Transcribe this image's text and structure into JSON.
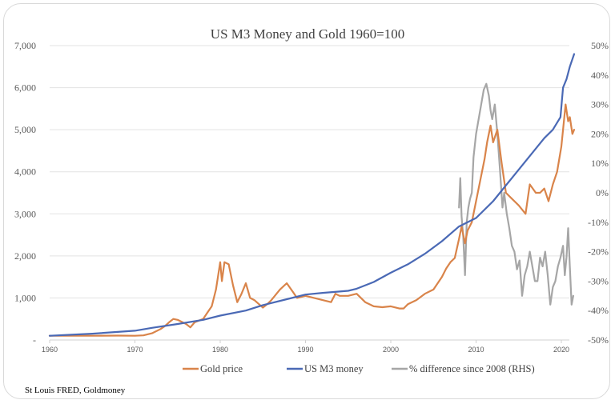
{
  "chart_data": {
    "type": "line",
    "title": "US M3 Money and Gold 1960=100",
    "xlabel": "",
    "ylabel": "",
    "source": "St Louis FRED, Goldmoney",
    "xlim": [
      1960,
      2022
    ],
    "ylim": [
      0,
      7000
    ],
    "y2lim": [
      -50,
      50
    ],
    "grid": true,
    "legend_position": "bottom",
    "x_ticks": [
      "1960",
      "1970",
      "1980",
      "1990",
      "2000",
      "2010",
      "2020"
    ],
    "y_ticks": [
      "-",
      "1,000",
      "2,000",
      "3,000",
      "4,000",
      "5,000",
      "6,000",
      "7,000"
    ],
    "y2_ticks": [
      "-50%",
      "-40%",
      "-30%",
      "-20%",
      "-10%",
      "0%",
      "10%",
      "20%",
      "30%",
      "40%",
      "50%"
    ],
    "series": [
      {
        "name": "Gold price",
        "axis": "left",
        "color": "#d9844a",
        "x": [
          1960,
          1965,
          1968,
          1970,
          1971,
          1972,
          1973,
          1973.5,
          1974,
          1974.5,
          1975,
          1976,
          1976.5,
          1977,
          1978,
          1978.5,
          1979,
          1979.5,
          1980,
          1980.2,
          1980.5,
          1981,
          1981.5,
          1982,
          1982.5,
          1983,
          1983.5,
          1984,
          1985,
          1985.5,
          1986,
          1987,
          1987.8,
          1988.5,
          1989,
          1990,
          1991,
          1992,
          1993,
          1993.5,
          1994,
          1995,
          1996,
          1997,
          1998,
          1999,
          2000,
          2001,
          2001.5,
          2002,
          2003,
          2004,
          2005,
          2006,
          2006.5,
          2007,
          2007.5,
          2008,
          2008.3,
          2008.7,
          2009,
          2009.5,
          2010,
          2010.5,
          2011,
          2011.3,
          2011.7,
          2012,
          2012.5,
          2013,
          2013.5,
          2014,
          2015,
          2015.8,
          2016.3,
          2017,
          2017.5,
          2018,
          2018.5,
          2019,
          2019.5,
          2020,
          2020.5,
          2020.8,
          2021,
          2021.3,
          2021.5
        ],
        "values": [
          100,
          100,
          105,
          100,
          110,
          160,
          260,
          330,
          420,
          500,
          480,
          380,
          300,
          420,
          500,
          650,
          800,
          1200,
          1850,
          1400,
          1850,
          1800,
          1300,
          900,
          1100,
          1350,
          1000,
          950,
          770,
          850,
          950,
          1200,
          1350,
          1150,
          1000,
          1050,
          1000,
          950,
          900,
          1100,
          1050,
          1050,
          1100,
          900,
          800,
          780,
          800,
          750,
          750,
          850,
          950,
          1100,
          1200,
          1500,
          1700,
          1850,
          1950,
          2400,
          2700,
          2300,
          2600,
          2800,
          3300,
          3800,
          4300,
          4700,
          5100,
          4700,
          5000,
          4200,
          3500,
          3400,
          3200,
          3000,
          3700,
          3500,
          3500,
          3600,
          3300,
          3700,
          4000,
          4600,
          5600,
          5200,
          5300,
          4900,
          5000
        ]
      },
      {
        "name": "US M3 money",
        "axis": "left",
        "color": "#4a69b5",
        "x": [
          1960,
          1965,
          1970,
          1972,
          1975,
          1978,
          1980,
          1983,
          1985,
          1988,
          1990,
          1992,
          1995,
          1996,
          1998,
          2000,
          2002,
          2004,
          2006,
          2008,
          2010,
          2012,
          2014,
          2016,
          2018,
          2019,
          2019.9,
          2020.2,
          2020.6,
          2021,
          2021.5
        ],
        "values": [
          100,
          150,
          220,
          290,
          380,
          480,
          580,
          700,
          830,
          980,
          1080,
          1120,
          1170,
          1220,
          1380,
          1600,
          1800,
          2050,
          2350,
          2700,
          2900,
          3300,
          3800,
          4300,
          4800,
          5000,
          5300,
          6000,
          6200,
          6500,
          6800
        ]
      },
      {
        "name": "% difference since 2008 (RHS)",
        "axis": "right",
        "color": "#a6a6a6",
        "x": [
          2008.0,
          2008.15,
          2008.3,
          2008.5,
          2008.7,
          2008.9,
          2009.1,
          2009.3,
          2009.5,
          2009.7,
          2010.0,
          2010.3,
          2010.6,
          2010.9,
          2011.2,
          2011.5,
          2011.7,
          2011.9,
          2012.2,
          2012.5,
          2012.8,
          2013.1,
          2013.3,
          2013.6,
          2013.9,
          2014.2,
          2014.5,
          2014.8,
          2015.1,
          2015.4,
          2015.7,
          2016.0,
          2016.3,
          2016.6,
          2016.9,
          2017.2,
          2017.5,
          2017.8,
          2018.1,
          2018.4,
          2018.7,
          2019.0,
          2019.3,
          2019.6,
          2019.9,
          2020.2,
          2020.4,
          2020.6,
          2020.8,
          2021.0,
          2021.2,
          2021.4
        ],
        "values": [
          -5,
          5,
          -8,
          -15,
          -28,
          -10,
          -5,
          -2,
          0,
          12,
          20,
          25,
          30,
          35,
          37,
          33,
          28,
          25,
          30,
          20,
          8,
          -5,
          0,
          -7,
          -12,
          -18,
          -20,
          -26,
          -23,
          -35,
          -28,
          -25,
          -20,
          -25,
          -30,
          -30,
          -22,
          -25,
          -20,
          -28,
          -38,
          -32,
          -30,
          -25,
          -22,
          -18,
          -28,
          -22,
          -12,
          -25,
          -38,
          -35
        ]
      }
    ]
  }
}
